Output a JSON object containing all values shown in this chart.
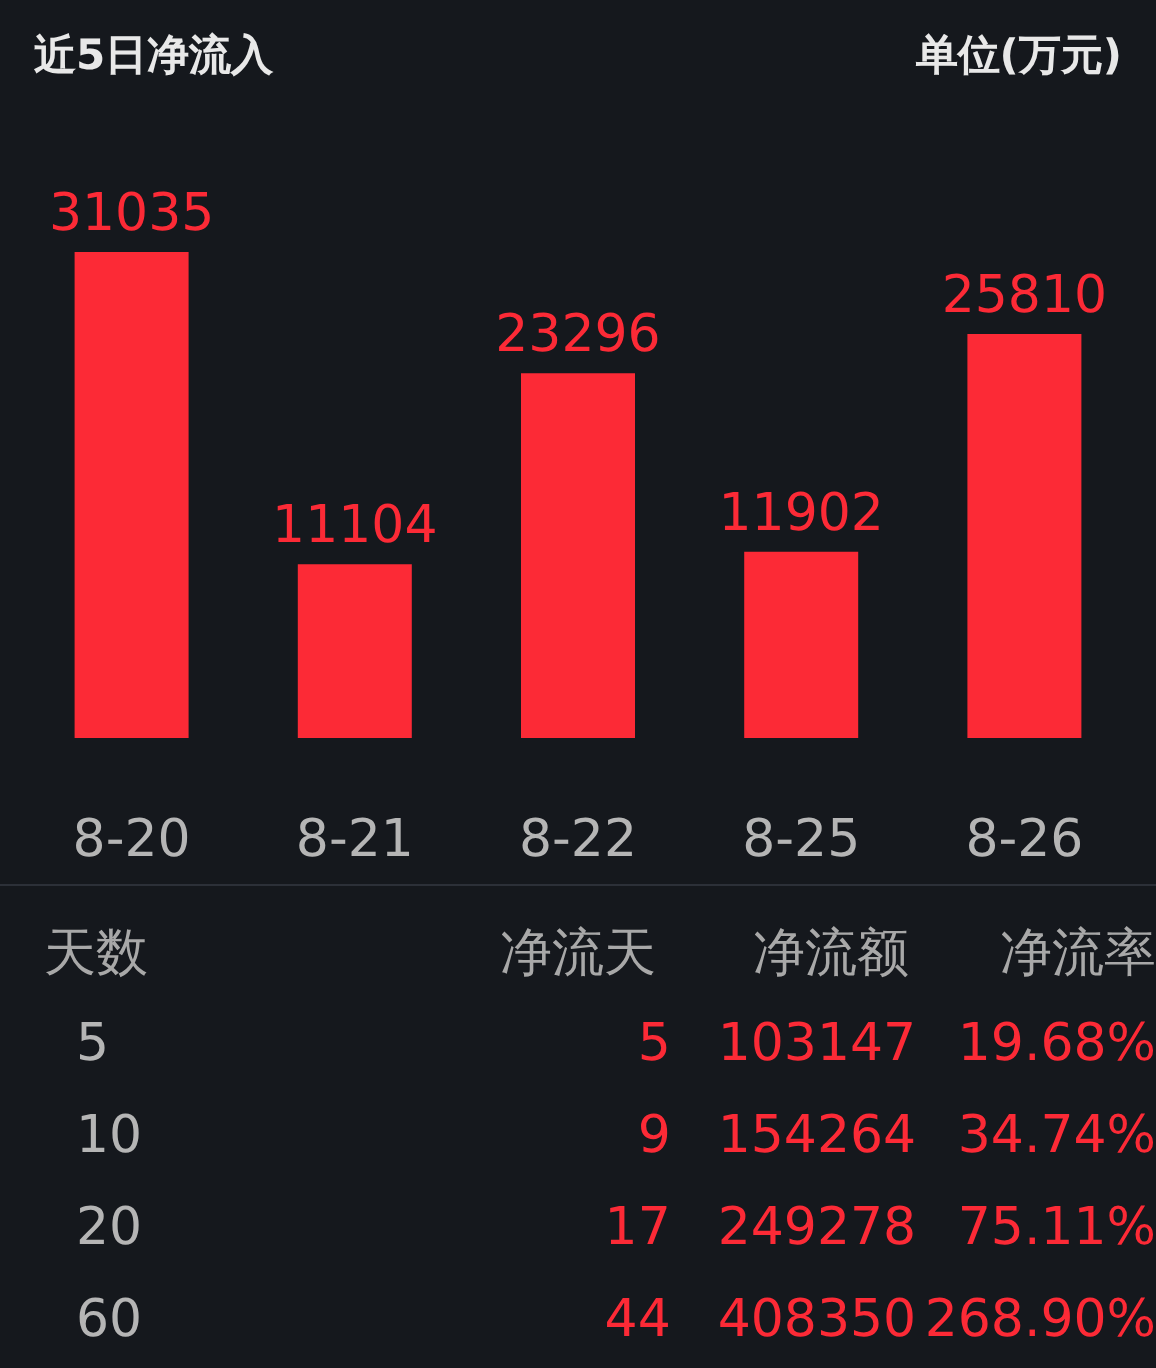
{
  "chart_data": [
    {
      "type": "bar",
      "title": "近5日净流入",
      "subtitle": "单位(万元)",
      "categories": [
        "8-20",
        "8-21",
        "8-22",
        "8-25",
        "8-26"
      ],
      "values": [
        31035,
        11104,
        23296,
        11902,
        25810
      ],
      "color": "#fc2a36",
      "data_labels": true
    },
    {
      "type": "other",
      "categories": [
        "天数",
        "净流天",
        "净流额",
        "净流率"
      ],
      "cell_labels": [
        [
          "5",
          "5",
          "103147",
          "19.68%"
        ],
        [
          "10",
          "9",
          "154264",
          "34.74%"
        ],
        [
          "20",
          "17",
          "249278",
          "75.11%"
        ],
        [
          "60",
          "44",
          "408350",
          "268.90%"
        ]
      ]
    }
  ]
}
